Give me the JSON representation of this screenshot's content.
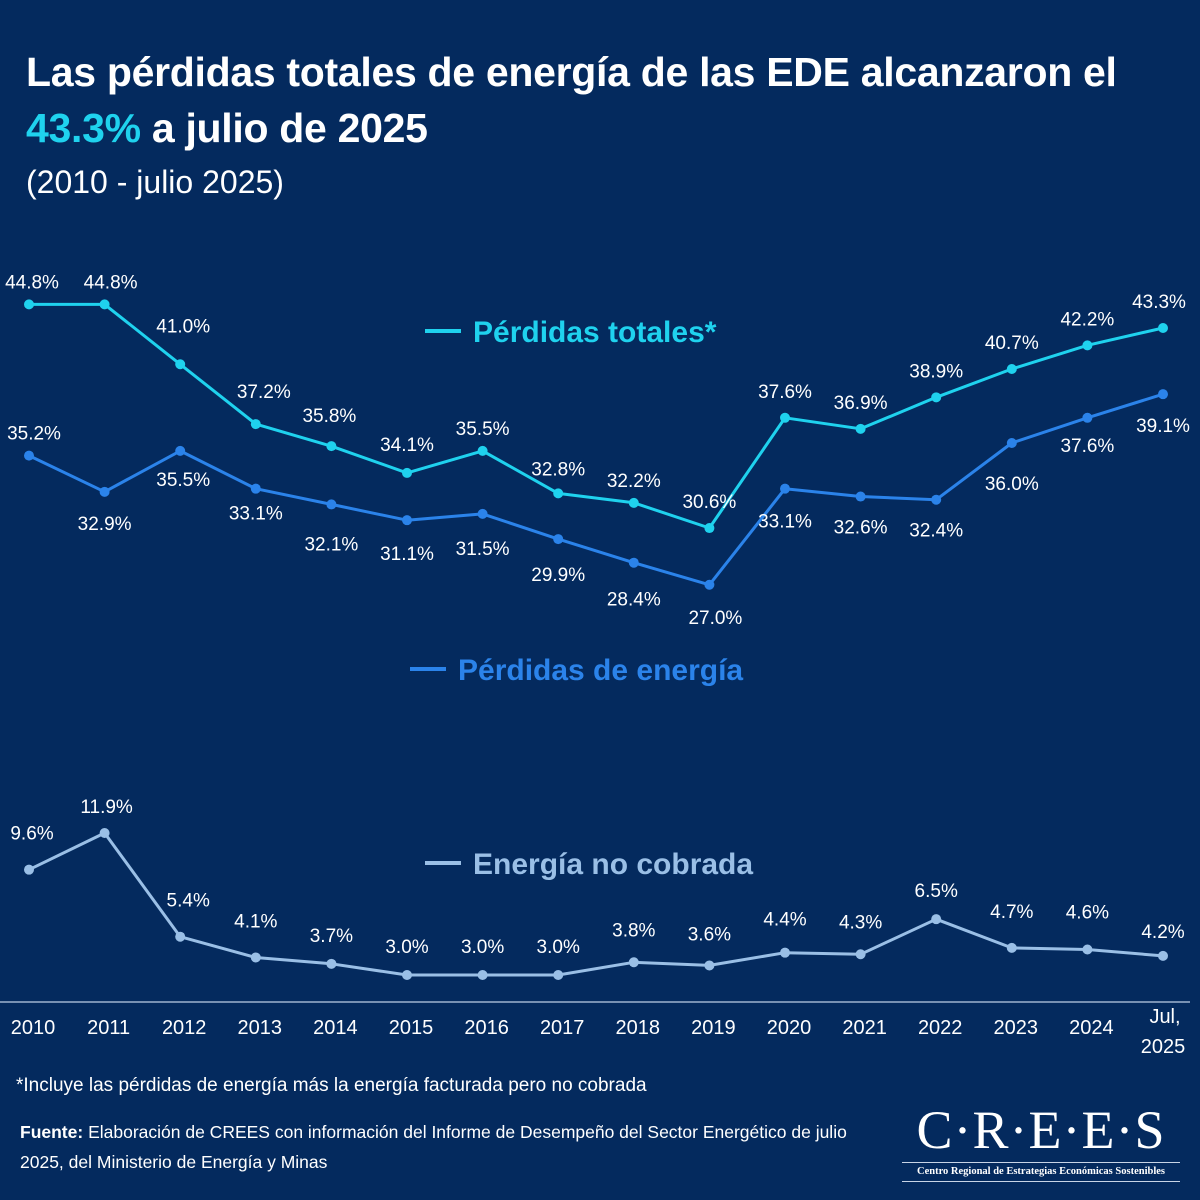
{
  "header": {
    "title_part1": "Las pérdidas totales de energía de las EDE alcanzaron el",
    "title_highlight": "43.3%",
    "title_part2": " a julio de 2025",
    "subtitle": "(2010 - julio 2025)"
  },
  "colors": {
    "background": "#042a5e",
    "highlight": "#1fd2ee",
    "perdidas_totales": "#1fd2ee",
    "perdidas_energia": "#2b83ea",
    "energia_no_cobrada": "#9abfe6"
  },
  "chart_data": {
    "type": "line",
    "title": "Las pérdidas totales de energía de las EDE alcanzaron el 43.3% a julio de 2025",
    "subtitle": "(2010 - julio 2025)",
    "xlabel": "",
    "ylabel": "",
    "grid": false,
    "categories": [
      "2010",
      "2011",
      "2012",
      "2013",
      "2014",
      "2015",
      "2016",
      "2017",
      "2018",
      "2019",
      "2020",
      "2021",
      "2022",
      "2023",
      "2024",
      "Jul, 2025"
    ],
    "series": [
      {
        "name": "Pérdidas totales*",
        "key": "perdidas_totales",
        "panel": "upper",
        "values": [
          44.8,
          44.8,
          41.0,
          37.2,
          35.8,
          34.1,
          35.5,
          32.8,
          32.2,
          30.6,
          37.6,
          36.9,
          38.9,
          40.7,
          42.2,
          43.3
        ],
        "labels": [
          "44.8%",
          "44.8%",
          "41.0%",
          "37.2%",
          "35.8%",
          "34.1%",
          "35.5%",
          "32.8%",
          "32.2%",
          "30.6%",
          "37.6%",
          "36.9%",
          "38.9%",
          "40.7%",
          "42.2%",
          "43.3%"
        ]
      },
      {
        "name": "Pérdidas de energía",
        "key": "perdidas_energia",
        "panel": "upper",
        "values": [
          35.2,
          32.9,
          35.5,
          33.1,
          32.1,
          31.1,
          31.5,
          29.9,
          28.4,
          27.0,
          33.1,
          32.6,
          32.4,
          36.0,
          37.6,
          39.1
        ],
        "labels": [
          "35.2%",
          "32.9%",
          "35.5%",
          "33.1%",
          "32.1%",
          "31.1%",
          "31.5%",
          "29.9%",
          "28.4%",
          "27.0%",
          "33.1%",
          "32.6%",
          "32.4%",
          "36.0%",
          "37.6%",
          "39.1%"
        ]
      },
      {
        "name": "Energía no cobrada",
        "key": "energia_no_cobrada",
        "panel": "lower",
        "values": [
          9.6,
          11.9,
          5.4,
          4.1,
          3.7,
          3.0,
          3.0,
          3.0,
          3.8,
          3.6,
          4.4,
          4.3,
          6.5,
          4.7,
          4.6,
          4.2
        ],
        "labels": [
          "9.6%",
          "11.9%",
          "5.4%",
          "4.1%",
          "3.7%",
          "3.0%",
          "3.0%",
          "3.0%",
          "3.8%",
          "3.6%",
          "4.4%",
          "4.3%",
          "6.5%",
          "4.7%",
          "4.6%",
          "4.2%"
        ]
      }
    ],
    "legend": [
      {
        "label": "Pérdidas totales*",
        "key": "perdidas_totales",
        "placement": "upper-center"
      },
      {
        "label": "Pérdidas de energía",
        "key": "perdidas_energia",
        "placement": "middle-center"
      },
      {
        "label": "Energía no cobrada",
        "key": "energia_no_cobrada",
        "placement": "lower-center"
      }
    ]
  },
  "footer": {
    "footnote": "*Incluye las pérdidas de energía más la energía facturada pero no cobrada",
    "source_label": "Fuente:",
    "source_text": " Elaboración de CREES con información del Informe de Desempeño del Sector Energético de julio 2025, del Ministerio de Energía y Minas"
  },
  "logo": {
    "mark": "C·R·E·E·S",
    "subtitle": "Centro Regional de Estrategias Económicas Sostenibles"
  }
}
